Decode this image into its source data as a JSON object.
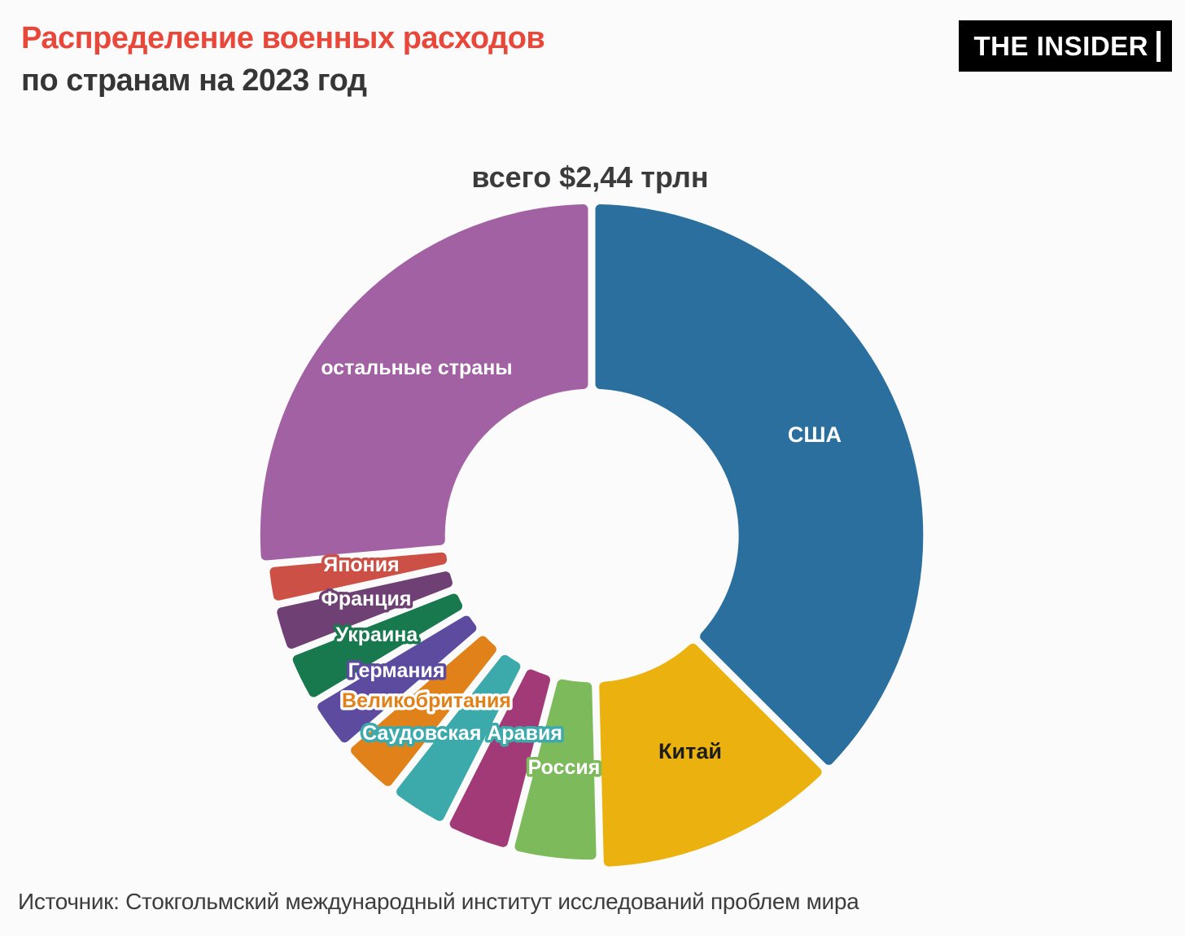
{
  "header": {
    "title_line1": "Распределение военных расходов",
    "title_line2": "по странам на 2023 год",
    "title_accent_color": "#e8473a",
    "logo_text": "THE INSIDER"
  },
  "footer": {
    "source": "Источник: Стокгольмский международный институт исследований проблем мира"
  },
  "chart_data": {
    "type": "pie",
    "subtype": "donut",
    "title": "всего $2,44 трлн",
    "total_trillion_usd": 2.44,
    "unit": "billion USD, estimated from slice sizes",
    "start_angle_deg": 0,
    "direction": "clockwise",
    "legend": "labels-on-slices",
    "slices": [
      {
        "name": "США",
        "value_billion_usd": 916,
        "share_percent": 37.5,
        "color": "#2a6f9e",
        "label": {
          "text_color": "#ffffff",
          "outline_color": null
        }
      },
      {
        "name": "Китай",
        "value_billion_usd": 296,
        "share_percent": 12.1,
        "color": "#ebb10e",
        "label": {
          "text_color": "#1d1d1b",
          "outline_color": null
        }
      },
      {
        "name": "Россия",
        "value_billion_usd": 109,
        "share_percent": 4.5,
        "color": "#7cba5c",
        "label": {
          "text_color": "#ffffff",
          "outline_color": "#7cba5c"
        }
      },
      {
        "name": "",
        "unlabeled_slice": true,
        "value_billion_usd": 84,
        "share_percent": 3.4,
        "color": "#a23a78",
        "label": null
      },
      {
        "name": "Саудовская Аравия",
        "value_billion_usd": 76,
        "share_percent": 3.1,
        "color": "#3ca9ab",
        "label": {
          "text_color": "#ffffff",
          "outline_color": "#3ca9ab"
        }
      },
      {
        "name": "Великобритания",
        "value_billion_usd": 75,
        "share_percent": 3.1,
        "color": "#e08119",
        "label": {
          "text_color": "#e08119",
          "outline_color": "#ffffff"
        }
      },
      {
        "name": "Германия",
        "value_billion_usd": 67,
        "share_percent": 2.7,
        "color": "#5c4b9e",
        "label": {
          "text_color": "#ffffff",
          "outline_color": "#5c4b9e"
        }
      },
      {
        "name": "Украина",
        "value_billion_usd": 65,
        "share_percent": 2.7,
        "color": "#17794d",
        "label": {
          "text_color": "#ffffff",
          "outline_color": "#17794d"
        }
      },
      {
        "name": "Франция",
        "value_billion_usd": 61,
        "share_percent": 2.5,
        "color": "#6f4074",
        "label": {
          "text_color": "#ffffff",
          "outline_color": "#6f4074"
        }
      },
      {
        "name": "Япония",
        "value_billion_usd": 50,
        "share_percent": 2.1,
        "color": "#cc5045",
        "label": {
          "text_color": "#ffffff",
          "outline_color": "#cc5045"
        }
      },
      {
        "name": "остальные страны",
        "value_billion_usd": 645,
        "share_percent": 26.4,
        "color": "#a261a3",
        "label": {
          "text_color": "#ffffff",
          "outline_color": null
        }
      }
    ]
  }
}
